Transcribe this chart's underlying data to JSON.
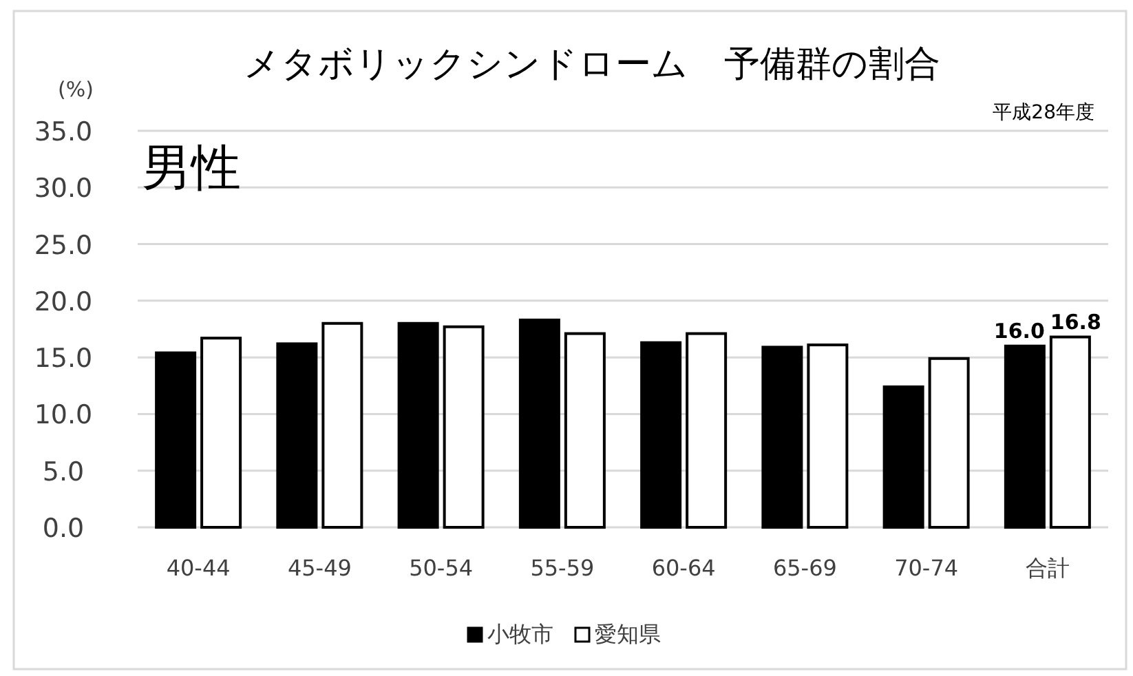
{
  "chart_data": {
    "type": "bar",
    "title": "メタボリックシンドローム　予備群の割合",
    "ylabel": "(%)",
    "annotations": [
      "平成28年度",
      "男性"
    ],
    "categories": [
      "40-44",
      "45-49",
      "50-54",
      "55-59",
      "60-64",
      "65-69",
      "70-74",
      "合計"
    ],
    "series": [
      {
        "name": "小牧市",
        "color": "#000000",
        "values": [
          15.4,
          16.2,
          18.0,
          18.3,
          16.3,
          15.9,
          12.4,
          16.0
        ],
        "value_labels": [
          null,
          null,
          null,
          null,
          null,
          null,
          null,
          "16.0"
        ]
      },
      {
        "name": "愛知県",
        "color": "#ffffff",
        "values": [
          16.7,
          18.0,
          17.7,
          17.1,
          17.1,
          16.1,
          14.9,
          16.8
        ],
        "value_labels": [
          null,
          null,
          null,
          null,
          null,
          null,
          null,
          "16.8"
        ]
      }
    ],
    "ylim": [
      0,
      35
    ],
    "yticks": [
      {
        "value": 0,
        "label": "0.0"
      },
      {
        "value": 5,
        "label": "5.0"
      },
      {
        "value": 10,
        "label": "10.0"
      },
      {
        "value": 15,
        "label": "15.0"
      },
      {
        "value": 20,
        "label": "20.0"
      },
      {
        "value": 25,
        "label": "25.0"
      },
      {
        "value": 30,
        "label": "30.0"
      },
      {
        "value": 35,
        "label": "35.0"
      }
    ],
    "grid": "y",
    "legend": "bottom"
  }
}
